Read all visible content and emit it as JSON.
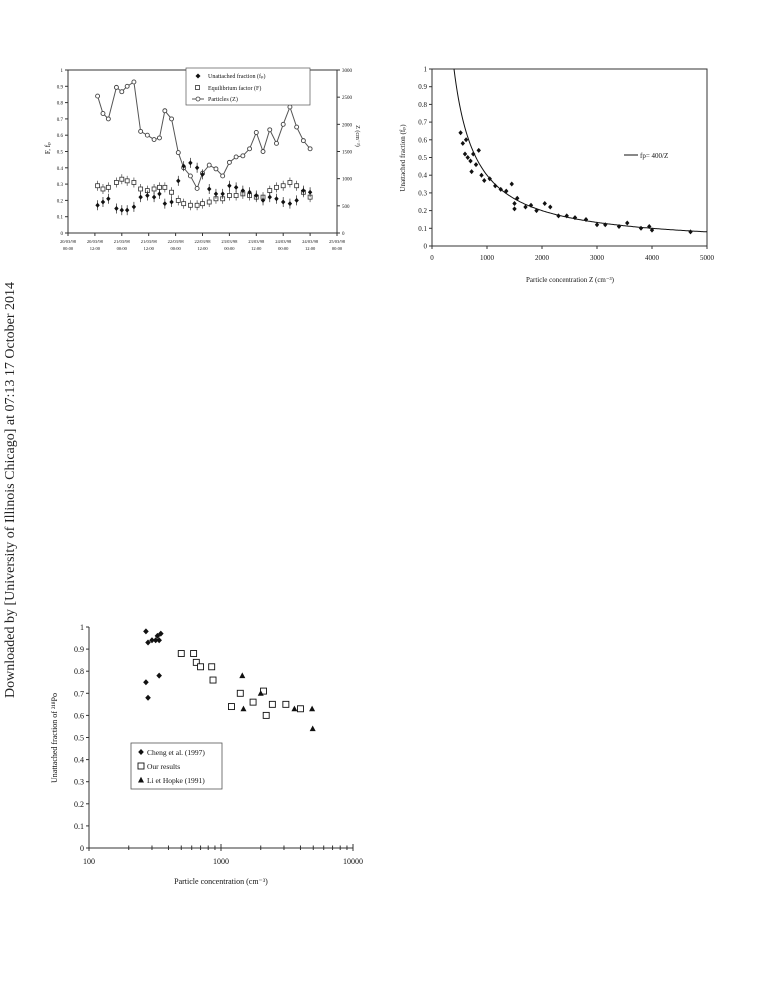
{
  "side_note": "Downloaded by [University of Illinois Chicago] at 07:13 17 October 2014",
  "chart_data": [
    {
      "type": "line",
      "title": "",
      "legend": {
        "placement": "top-center",
        "entries": [
          "Unattached fraction (fₚ)",
          "Equilibrium factor (F)",
          "Particles (Z)"
        ]
      },
      "ylabel_left": "F, fₚ",
      "ylabel_right": "Z (cm⁻³)",
      "ylim_left": [
        0,
        1
      ],
      "ylim_right": [
        0,
        3000
      ],
      "yticks_left": [
        "0",
        "0.1",
        "0.2",
        "0.3",
        "0.4",
        "0.5",
        "0.6",
        "0.7",
        "0.8",
        "0.9",
        "1"
      ],
      "yticks_right": [
        "0",
        "500",
        "1000",
        "1500",
        "2000",
        "2500",
        "3000"
      ],
      "xticks": [
        {
          "date": "20/03/98",
          "time": "00:00"
        },
        {
          "date": "20/03/98",
          "time": "12:00"
        },
        {
          "date": "21/03/98",
          "time": "00:00"
        },
        {
          "date": "21/03/98",
          "time": "12:00"
        },
        {
          "date": "22/03/98",
          "time": "00:00"
        },
        {
          "date": "22/03/98",
          "time": "12:00"
        },
        {
          "date": "23/03/98",
          "time": "00:00"
        },
        {
          "date": "23/03/98",
          "time": "12:00"
        },
        {
          "date": "24/03/98",
          "time": "00:00"
        },
        {
          "date": "24/03/98",
          "time": "12:00"
        },
        {
          "date": "25/03/98",
          "time": "00:00"
        }
      ],
      "series": [
        {
          "name": "Particles (Z)",
          "axis": "right",
          "color": "#555555",
          "x": [
            1.1,
            1.3,
            1.5,
            1.8,
            2.0,
            2.2,
            2.45,
            2.7,
            2.95,
            3.2,
            3.4,
            3.6,
            3.85,
            4.1,
            4.3,
            4.55,
            4.8,
            5.0,
            5.25,
            5.5,
            5.75,
            6.0,
            6.25,
            6.5,
            6.75,
            7.0,
            7.25,
            7.5,
            7.75,
            8.0,
            8.25,
            8.5,
            8.75,
            9.0
          ],
          "values": [
            2520,
            2200,
            2100,
            2680,
            2600,
            2700,
            2780,
            1870,
            1800,
            1720,
            1750,
            2250,
            2100,
            1480,
            1200,
            1050,
            820,
            1100,
            1250,
            1180,
            1050,
            1300,
            1400,
            1420,
            1550,
            1850,
            1500,
            1900,
            1650,
            2000,
            2320,
            1950,
            1700,
            1550
          ]
        },
        {
          "name": "Equilibrium factor (F)",
          "axis": "left",
          "color": "#333333",
          "x": [
            1.1,
            1.3,
            1.5,
            1.8,
            2.0,
            2.2,
            2.45,
            2.7,
            2.95,
            3.2,
            3.4,
            3.6,
            3.85,
            4.1,
            4.3,
            4.55,
            4.8,
            5.0,
            5.25,
            5.5,
            5.75,
            6.0,
            6.25,
            6.5,
            6.75,
            7.0,
            7.25,
            7.5,
            7.75,
            8.0,
            8.25,
            8.5,
            8.75,
            9.0
          ],
          "values": [
            0.29,
            0.27,
            0.28,
            0.31,
            0.33,
            0.32,
            0.31,
            0.27,
            0.26,
            0.27,
            0.28,
            0.28,
            0.25,
            0.2,
            0.18,
            0.17,
            0.17,
            0.18,
            0.19,
            0.21,
            0.21,
            0.23,
            0.23,
            0.24,
            0.23,
            0.22,
            0.22,
            0.26,
            0.28,
            0.29,
            0.31,
            0.29,
            0.25,
            0.22
          ]
        },
        {
          "name": "Unattached fraction (fₚ)",
          "axis": "left",
          "color": "#111111",
          "x": [
            1.1,
            1.3,
            1.5,
            1.8,
            2.0,
            2.2,
            2.45,
            2.7,
            2.95,
            3.2,
            3.4,
            3.6,
            3.85,
            4.1,
            4.3,
            4.55,
            4.8,
            5.0,
            5.25,
            5.5,
            5.75,
            6.0,
            6.25,
            6.5,
            6.75,
            7.0,
            7.25,
            7.5,
            7.75,
            8.0,
            8.25,
            8.5,
            8.75,
            9.0
          ],
          "values": [
            0.17,
            0.19,
            0.21,
            0.15,
            0.14,
            0.14,
            0.16,
            0.22,
            0.23,
            0.22,
            0.24,
            0.18,
            0.19,
            0.32,
            0.41,
            0.43,
            0.4,
            0.36,
            0.27,
            0.24,
            0.24,
            0.29,
            0.28,
            0.26,
            0.25,
            0.23,
            0.2,
            0.22,
            0.21,
            0.19,
            0.18,
            0.2,
            0.26,
            0.25
          ]
        }
      ]
    },
    {
      "type": "scatter",
      "title": "",
      "xlabel": "Particle concentration Z (cm⁻³)",
      "ylabel": "Unattached fraction (fₚ)",
      "xlim": [
        0,
        5000
      ],
      "ylim": [
        0,
        1
      ],
      "xticks": [
        "0",
        "1000",
        "2000",
        "3000",
        "4000",
        "5000"
      ],
      "yticks": [
        "0",
        "0.1",
        "0.2",
        "0.3",
        "0.4",
        "0.5",
        "0.6",
        "0.7",
        "0.8",
        "0.9",
        "1"
      ],
      "legend": {
        "placement": "right",
        "entries": [
          "fp= 400/Z"
        ]
      },
      "fit": {
        "name": "fp= 400/Z",
        "k": 400
      },
      "series": [
        {
          "name": "",
          "color": "#111111",
          "x": [
            520,
            560,
            600,
            620,
            650,
            700,
            720,
            750,
            800,
            850,
            900,
            950,
            1050,
            1150,
            1250,
            1350,
            1450,
            1500,
            1500,
            1550,
            1700,
            1800,
            1900,
            2050,
            2150,
            2300,
            2450,
            2600,
            2800,
            3000,
            3150,
            3400,
            3550,
            3800,
            3950,
            4000,
            4700
          ],
          "y": [
            0.64,
            0.58,
            0.52,
            0.6,
            0.5,
            0.48,
            0.42,
            0.52,
            0.46,
            0.54,
            0.4,
            0.37,
            0.38,
            0.34,
            0.32,
            0.31,
            0.35,
            0.21,
            0.24,
            0.27,
            0.22,
            0.23,
            0.2,
            0.24,
            0.22,
            0.17,
            0.17,
            0.16,
            0.15,
            0.12,
            0.12,
            0.11,
            0.13,
            0.1,
            0.11,
            0.09,
            0.08
          ]
        }
      ]
    },
    {
      "type": "scatter",
      "title": "",
      "xlabel": "Particle concentration (cm⁻³)",
      "ylabel": "Unattached fraction of ²¹⁸Po",
      "xscale": "log",
      "xlim": [
        100,
        10000
      ],
      "ylim": [
        0,
        1
      ],
      "xticks": [
        "100",
        "1000",
        "10000"
      ],
      "yticks": [
        "0",
        "0.1",
        "0.2",
        "0.3",
        "0.4",
        "0.5",
        "0.6",
        "0.7",
        "0.8",
        "0.9",
        "1"
      ],
      "legend": {
        "placement": "lower-left",
        "entries": [
          "Cheng et al. (1997)",
          "Our results",
          "Li et Hopke (1991)"
        ]
      },
      "series": [
        {
          "name": "Cheng et al. (1997)",
          "marker": "diamond-filled",
          "color": "#111111",
          "x": [
            270,
            280,
            300,
            320,
            330,
            340,
            340,
            350,
            270,
            280
          ],
          "y": [
            0.98,
            0.93,
            0.94,
            0.94,
            0.96,
            0.78,
            0.94,
            0.97,
            0.75,
            0.68
          ]
        },
        {
          "name": "Our results",
          "marker": "square-open",
          "color": "#111111",
          "x": [
            500,
            620,
            650,
            700,
            850,
            870,
            1200,
            1400,
            1750,
            2100,
            2200,
            2450,
            3100,
            4000
          ],
          "y": [
            0.88,
            0.88,
            0.84,
            0.82,
            0.82,
            0.76,
            0.64,
            0.7,
            0.66,
            0.71,
            0.6,
            0.65,
            0.65,
            0.63
          ]
        },
        {
          "name": "Li et Hopke (1991)",
          "marker": "triangle-filled",
          "color": "#111111",
          "x": [
            1450,
            1480,
            2000,
            3600,
            4900,
            4950
          ],
          "y": [
            0.78,
            0.63,
            0.7,
            0.63,
            0.63,
            0.54
          ]
        }
      ]
    }
  ]
}
